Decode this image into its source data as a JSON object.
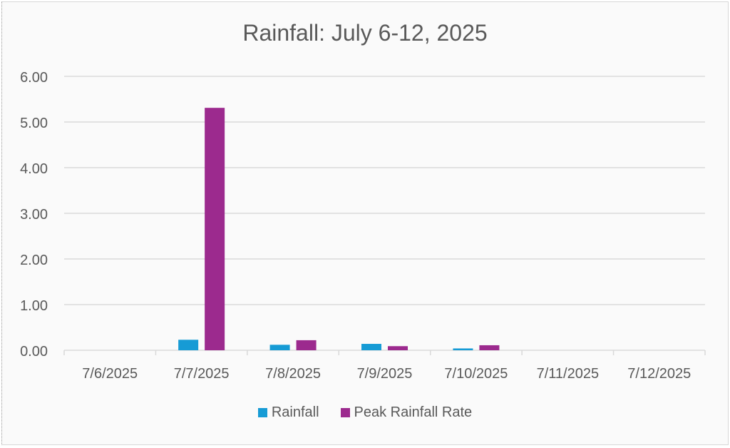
{
  "chart_data": {
    "type": "bar",
    "title": "Rainfall:  July 6-12, 2025",
    "xlabel": "",
    "ylabel": "",
    "categories": [
      "7/6/2025",
      "7/7/2025",
      "7/8/2025",
      "7/9/2025",
      "7/10/2025",
      "7/11/2025",
      "7/12/2025"
    ],
    "series": [
      {
        "name": "Rainfall",
        "color": "#169bd5",
        "values": [
          0.0,
          0.23,
          0.12,
          0.14,
          0.04,
          0.0,
          0.0
        ]
      },
      {
        "name": "Peak Rainfall Rate",
        "color": "#9c2a8e",
        "values": [
          0.0,
          5.31,
          0.22,
          0.09,
          0.11,
          0.0,
          0.0
        ]
      }
    ],
    "ylim": [
      0,
      6
    ],
    "yticks": [
      "0.00",
      "1.00",
      "2.00",
      "3.00",
      "4.00",
      "5.00",
      "6.00"
    ],
    "grid": true,
    "legend_position": "bottom"
  },
  "legend": [
    {
      "label": "Rainfall",
      "color": "#169bd5"
    },
    {
      "label": "Peak Rainfall Rate",
      "color": "#9c2a8e"
    }
  ]
}
